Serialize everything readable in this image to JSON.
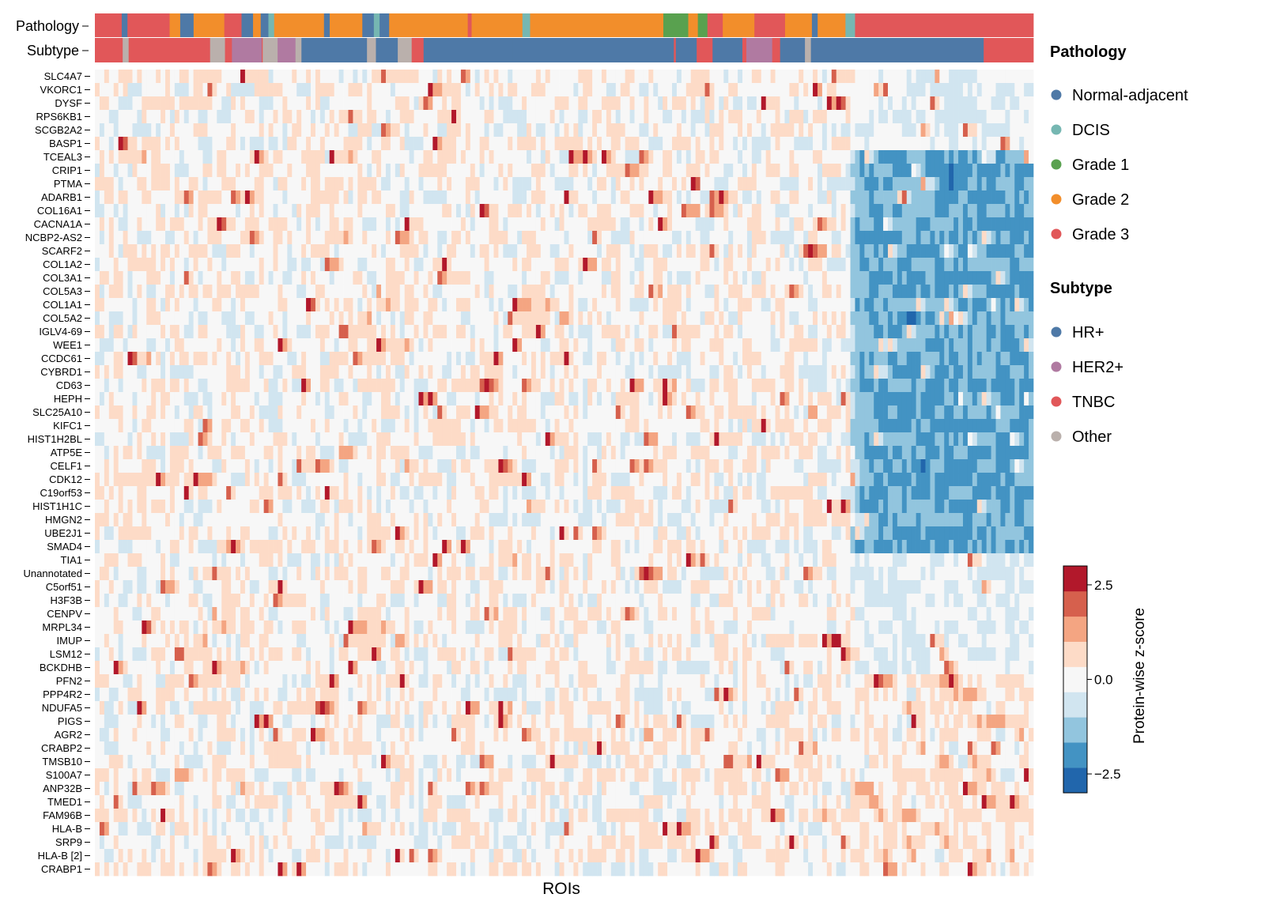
{
  "chart_data": {
    "type": "heatmap",
    "title": "",
    "xlabel": "ROIs",
    "ylabel": "",
    "colorbar": {
      "label": "Protein-wise z-score",
      "ticks": [
        2.5,
        0.0,
        -2.5
      ],
      "tick_labels": [
        "2.5",
        "0.0",
        "−2.5"
      ],
      "range": [
        -3.0,
        3.0
      ],
      "colors": [
        "#2166ac",
        "#4393c3",
        "#92c5de",
        "#d1e5f0",
        "#f7f7f7",
        "#fddbc7",
        "#f4a582",
        "#d6604d",
        "#b2182b"
      ]
    },
    "annotation_rows": [
      "Pathology",
      "Subtype"
    ],
    "genes": [
      "SLC4A7",
      "VKORC1",
      "DYSF",
      "RPS6KB1",
      "SCGB2A2",
      "BASP1",
      "TCEAL3",
      "CRIP1",
      "PTMA",
      "ADARB1",
      "COL16A1",
      "CACNA1A",
      "NCBP2-AS2",
      "SCARF2",
      "COL1A2",
      "COL3A1",
      "COL5A3",
      "COL1A1",
      "COL5A2",
      "IGLV4-69",
      "WEE1",
      "CCDC61",
      "CYBRD1",
      "CD63",
      "HEPH",
      "SLC25A10",
      "KIFC1",
      "HIST1H2BL",
      "ATP5E",
      "CELF1",
      "CDK12",
      "C19orf53",
      "HIST1H1C",
      "HMGN2",
      "UBE2J1",
      "SMAD4",
      "TIA1",
      "Unannotated",
      "C5orf51",
      "H3F3B",
      "CENPV",
      "MRPL34",
      "IMUP",
      "LSM12",
      "BCKDHB",
      "PFN2",
      "PPP4R2",
      "NDUFA5",
      "PIGS",
      "AGR2",
      "CRABP2",
      "TMSB10",
      "S100A7",
      "ANP32B",
      "TMED1",
      "FAM96B",
      "HLA-B",
      "SRP9",
      "HLA-B [2]",
      "CRABP1"
    ],
    "pathology_segments": [
      {
        "category": "Grade 3",
        "fraction": 0.028
      },
      {
        "category": "Normal-adjacent",
        "fraction": 0.006
      },
      {
        "category": "Grade 3",
        "fraction": 0.044
      },
      {
        "category": "Grade 2",
        "fraction": 0.011
      },
      {
        "category": "Normal-adjacent",
        "fraction": 0.014
      },
      {
        "category": "Grade 2",
        "fraction": 0.032
      },
      {
        "category": "Grade 3",
        "fraction": 0.018
      },
      {
        "category": "Normal-adjacent",
        "fraction": 0.012
      },
      {
        "category": "Grade 2",
        "fraction": 0.008
      },
      {
        "category": "Normal-adjacent",
        "fraction": 0.008
      },
      {
        "category": "DCIS",
        "fraction": 0.006
      },
      {
        "category": "Grade 2",
        "fraction": 0.052
      },
      {
        "category": "Normal-adjacent",
        "fraction": 0.006
      },
      {
        "category": "Grade 2",
        "fraction": 0.034
      },
      {
        "category": "Normal-adjacent",
        "fraction": 0.012
      },
      {
        "category": "DCIS",
        "fraction": 0.006
      },
      {
        "category": "Normal-adjacent",
        "fraction": 0.01
      },
      {
        "category": "Grade 2",
        "fraction": 0.082
      },
      {
        "category": "Grade 3",
        "fraction": 0.004
      },
      {
        "category": "Grade 2",
        "fraction": 0.053
      },
      {
        "category": "DCIS",
        "fraction": 0.008
      },
      {
        "category": "Grade 2",
        "fraction": 0.083
      },
      {
        "category": "Grade 2",
        "fraction": 0.056
      },
      {
        "category": "Grade 1",
        "fraction": 0.026
      },
      {
        "category": "Grade 2",
        "fraction": 0.01
      },
      {
        "category": "Grade 1",
        "fraction": 0.01
      },
      {
        "category": "Grade 3",
        "fraction": 0.016
      },
      {
        "category": "Grade 2",
        "fraction": 0.033
      },
      {
        "category": "Grade 3",
        "fraction": 0.032
      },
      {
        "category": "Grade 2",
        "fraction": 0.028
      },
      {
        "category": "Normal-adjacent",
        "fraction": 0.006
      },
      {
        "category": "Grade 2",
        "fraction": 0.029
      },
      {
        "category": "DCIS",
        "fraction": 0.01
      },
      {
        "category": "Grade 3",
        "fraction": 0.186
      }
    ],
    "subtype_segments": [
      {
        "category": "TNBC",
        "fraction": 0.028
      },
      {
        "category": "Other",
        "fraction": 0.006
      },
      {
        "category": "TNBC",
        "fraction": 0.082
      },
      {
        "category": "Other",
        "fraction": 0.015
      },
      {
        "category": "TNBC",
        "fraction": 0.007
      },
      {
        "category": "HER2+",
        "fraction": 0.03
      },
      {
        "category": "TNBC",
        "fraction": 0.001
      },
      {
        "category": "Other",
        "fraction": 0.015
      },
      {
        "category": "HER2+",
        "fraction": 0.018
      },
      {
        "category": "Other",
        "fraction": 0.006
      },
      {
        "category": "HR+",
        "fraction": 0.066
      },
      {
        "category": "Other",
        "fraction": 0.009
      },
      {
        "category": "HR+",
        "fraction": 0.022
      },
      {
        "category": "Other",
        "fraction": 0.014
      },
      {
        "category": "TNBC",
        "fraction": 0.012
      },
      {
        "category": "HR+",
        "fraction": 0.09
      },
      {
        "category": "HR+",
        "fraction": 0.162
      },
      {
        "category": "TNBC",
        "fraction": 0.002
      },
      {
        "category": "HR+",
        "fraction": 0.021
      },
      {
        "category": "TNBC",
        "fraction": 0.016
      },
      {
        "category": "HR+",
        "fraction": 0.03
      },
      {
        "category": "TNBC",
        "fraction": 0.004
      },
      {
        "category": "HER2+",
        "fraction": 0.026
      },
      {
        "category": "TNBC",
        "fraction": 0.008
      },
      {
        "category": "HR+",
        "fraction": 0.025
      },
      {
        "category": "Other",
        "fraction": 0.006
      },
      {
        "category": "HR+",
        "fraction": 0.174
      },
      {
        "category": "TNBC",
        "fraction": 0.05
      }
    ]
  },
  "legend": {
    "pathology_title": "Pathology",
    "pathology_items": [
      {
        "label": "Normal-adjacent",
        "color": "#4e79a7"
      },
      {
        "label": "DCIS",
        "color": "#76b7b2"
      },
      {
        "label": "Grade 1",
        "color": "#59a14f"
      },
      {
        "label": "Grade 2",
        "color": "#f28e2b"
      },
      {
        "label": "Grade 3",
        "color": "#e15759"
      }
    ],
    "subtype_title": "Subtype",
    "subtype_items": [
      {
        "label": "HR+",
        "color": "#4e79a7"
      },
      {
        "label": "HER2+",
        "color": "#b07aa1"
      },
      {
        "label": "TNBC",
        "color": "#e15759"
      },
      {
        "label": "Other",
        "color": "#bab0ac"
      }
    ]
  }
}
